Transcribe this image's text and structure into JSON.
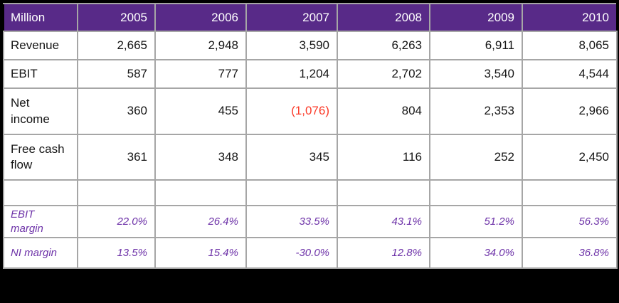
{
  "colors": {
    "background": "#000000",
    "header_bg": "#582a88",
    "header_text": "#ffffff",
    "gridline": "#a6a6a6",
    "cell_bg": "#ffffff",
    "value_text": "#151515",
    "negative_value": "#fb3a28",
    "margin_text": "#6d32a8"
  },
  "chart_data": {
    "type": "table",
    "unit_label": "Million",
    "columns": [
      "2005",
      "2006",
      "2007",
      "2008",
      "2009",
      "2010"
    ],
    "rows": [
      {
        "label": "Revenue",
        "style": "normal",
        "values": [
          "2,665",
          "2,948",
          "3,590",
          "6,263",
          "6,911",
          "8,065"
        ]
      },
      {
        "label": "EBIT",
        "style": "normal",
        "values": [
          "587",
          "777",
          "1,204",
          "2,702",
          "3,540",
          "4,544"
        ]
      },
      {
        "label": "Net income",
        "style": "normal",
        "values": [
          "360",
          "455",
          "(1,076)",
          "804",
          "2,353",
          "2,966"
        ],
        "red_indices": [
          2
        ]
      },
      {
        "label": "Free cash flow",
        "style": "normal",
        "values": [
          "361",
          "348",
          "345",
          "116",
          "252",
          "2,450"
        ]
      },
      {
        "label": "",
        "style": "spacer",
        "values": [
          "",
          "",
          "",
          "",
          "",
          ""
        ]
      },
      {
        "label": "EBIT margin",
        "style": "margin",
        "values": [
          "22.0%",
          "26.4%",
          "33.5%",
          "43.1%",
          "51.2%",
          "56.3%"
        ]
      },
      {
        "label": "NI margin",
        "style": "margin",
        "values": [
          "13.5%",
          "15.4%",
          "-30.0%",
          "12.8%",
          "34.0%",
          "36.8%"
        ]
      }
    ]
  }
}
